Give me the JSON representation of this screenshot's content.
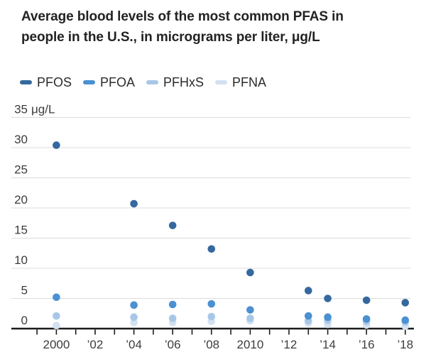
{
  "header": {
    "title_line1": "Average blood levels of the most common PFAS in",
    "title_line2": "people in the U.S., in micrograms per liter, μg/L"
  },
  "chart_data": {
    "type": "scatter",
    "x": [
      2000,
      2004,
      2006,
      2008,
      2010,
      2013,
      2014,
      2016,
      2018
    ],
    "series": [
      {
        "name": "PFOS",
        "color": "#35689e",
        "values": [
          30.4,
          20.7,
          17.1,
          13.2,
          9.3,
          6.3,
          5.0,
          4.7,
          4.3
        ]
      },
      {
        "name": "PFOA",
        "color": "#4a90d2",
        "values": [
          5.2,
          3.9,
          4.0,
          4.1,
          3.1,
          2.1,
          1.9,
          1.6,
          1.4
        ]
      },
      {
        "name": "PFHxS",
        "color": "#a8c7e8",
        "values": [
          2.1,
          1.9,
          1.7,
          2.0,
          1.7,
          1.3,
          1.4,
          1.2,
          1.1
        ]
      },
      {
        "name": "PFNA",
        "color": "#d3e1f1",
        "values": [
          0.5,
          1.0,
          1.0,
          1.2,
          1.3,
          0.9,
          0.7,
          0.6,
          0.4
        ]
      }
    ],
    "title": "Average blood levels of the most common PFAS in people in the U.S., in micrograms per liter, μg/L",
    "xlabel": "",
    "ylabel": "μg/L",
    "ylim": [
      0,
      35
    ],
    "yticks": [
      0,
      5,
      10,
      15,
      20,
      25,
      30,
      35
    ],
    "y_unit": "μg/L",
    "xlim": [
      1999,
      2018
    ],
    "xticks": [
      1999,
      2000,
      2001,
      2002,
      2003,
      2004,
      2005,
      2006,
      2007,
      2008,
      2009,
      2010,
      2011,
      2012,
      2013,
      2014,
      2015,
      2016,
      2017,
      2018
    ],
    "xtick_labels": [
      {
        "x": 2000,
        "label": "2000"
      },
      {
        "x": 2002,
        "label": "’02"
      },
      {
        "x": 2004,
        "label": "’04"
      },
      {
        "x": 2006,
        "label": "’06"
      },
      {
        "x": 2008,
        "label": "’08"
      },
      {
        "x": 2010,
        "label": "2010"
      },
      {
        "x": 2012,
        "label": "’12"
      },
      {
        "x": 2014,
        "label": "’14"
      },
      {
        "x": 2016,
        "label": "’16"
      },
      {
        "x": 2018,
        "label": "’18"
      }
    ],
    "legend_position": "top",
    "grid": "horizontal"
  }
}
